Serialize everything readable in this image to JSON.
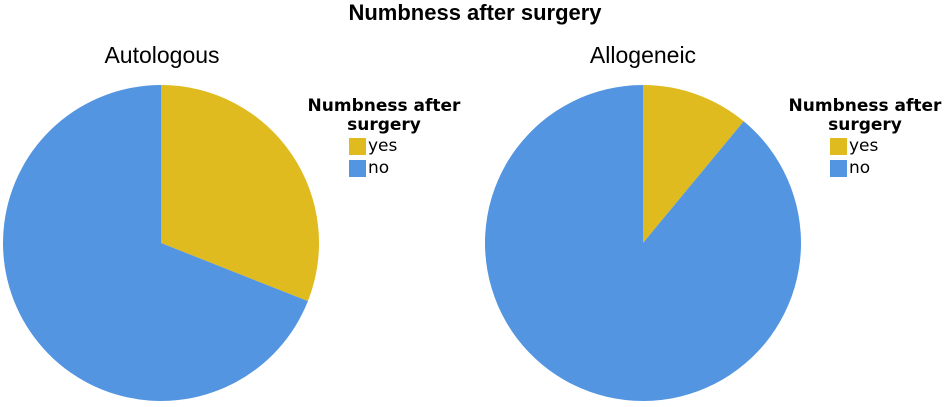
{
  "title": "Numbness after surgery",
  "colors": {
    "yes": "#DFBB1F",
    "no": "#5495E1"
  },
  "chart_data": [
    {
      "type": "pie",
      "title": "Autologous",
      "legend_title": "Numbness after surgery",
      "legend_position": "right",
      "labels": [
        "yes",
        "no"
      ],
      "values": [
        31,
        69
      ],
      "unit": "%"
    },
    {
      "type": "pie",
      "title": "Allogeneic",
      "legend_title": "Numbness after surgery",
      "legend_position": "right",
      "labels": [
        "yes",
        "no"
      ],
      "values": [
        11,
        89
      ],
      "unit": "%"
    }
  ]
}
